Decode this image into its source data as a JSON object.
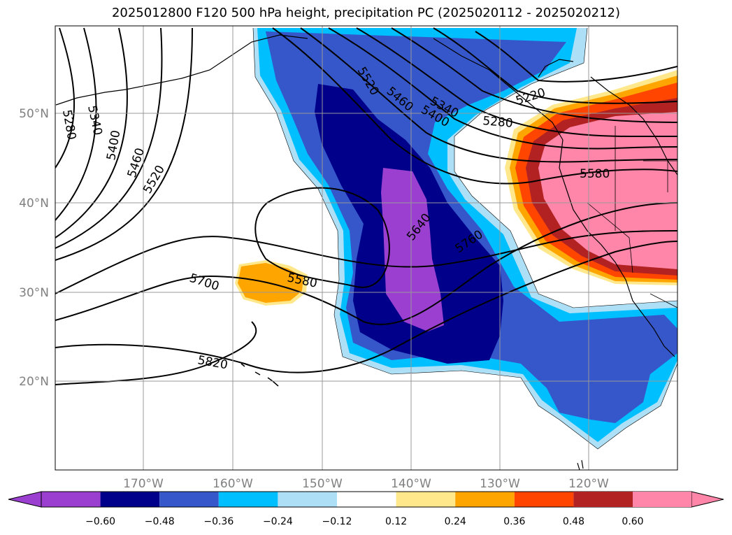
{
  "title": "2025012800 F120 500 hPa height, precipitation PC (2025020112 - 2025020212)",
  "map": {
    "lon_labels": [
      "170°W",
      "160°W",
      "150°W",
      "140°W",
      "130°W",
      "120°W"
    ],
    "lat_labels": [
      "50°N",
      "40°N",
      "30°N",
      "20°N"
    ],
    "contour_labels": [
      "5280",
      "5340",
      "5400",
      "5460",
      "5520",
      "5520",
      "5460",
      "5400",
      "5340",
      "5280",
      "5220",
      "5580",
      "5640",
      "5760",
      "5580",
      "5700",
      "5820"
    ]
  },
  "colorbar": {
    "ticks": [
      "−0.60",
      "−0.48",
      "−0.36",
      "−0.24",
      "−0.12",
      "0.12",
      "0.24",
      "0.36",
      "0.48",
      "0.60"
    ],
    "colors": [
      "#9b3fd0",
      "#00008b",
      "#3557c9",
      "#00bfff",
      "#ade0f7",
      "#ffffff",
      "#ffe88c",
      "#ffa500",
      "#ff4500",
      "#b22222",
      "#ff86a8"
    ]
  }
}
